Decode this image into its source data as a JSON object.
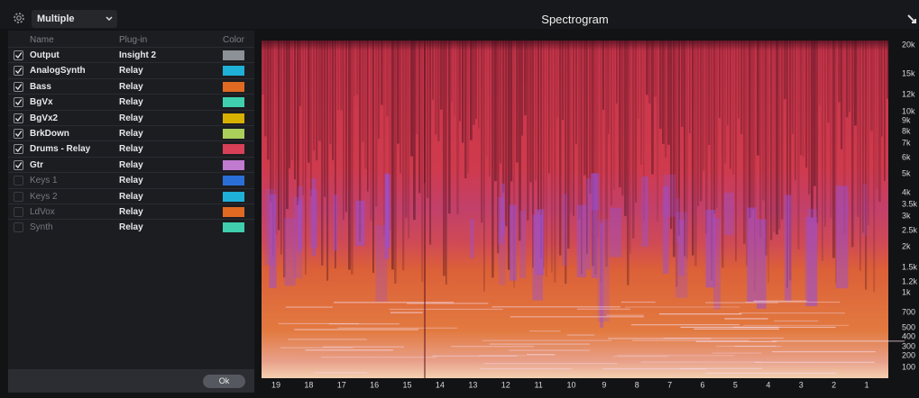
{
  "toolbar": {
    "view_select": "Multiple",
    "title": "Spectrogram"
  },
  "table": {
    "headers": [
      "Name",
      "Plug-in",
      "Color"
    ],
    "rows": [
      {
        "name": "Output",
        "plugin": "Insight 2",
        "color": "#8c9097",
        "checked": true
      },
      {
        "name": "AnalogSynth",
        "plugin": "Relay",
        "color": "#1fb0d8",
        "checked": true
      },
      {
        "name": "Bass",
        "plugin": "Relay",
        "color": "#e06a22",
        "checked": true
      },
      {
        "name": "BgVx",
        "plugin": "Relay",
        "color": "#3fcfae",
        "checked": true
      },
      {
        "name": "BgVx2",
        "plugin": "Relay",
        "color": "#d8b000",
        "checked": true
      },
      {
        "name": "BrkDown",
        "plugin": "Relay",
        "color": "#a9cf5a",
        "checked": true
      },
      {
        "name": "Drums - Relay",
        "plugin": "Relay",
        "color": "#d84058",
        "checked": true
      },
      {
        "name": "Gtr",
        "plugin": "Relay",
        "color": "#c07ad0",
        "checked": true
      },
      {
        "name": "Keys 1",
        "plugin": "Relay",
        "color": "#2a6fd8",
        "checked": false
      },
      {
        "name": "Keys 2",
        "plugin": "Relay",
        "color": "#1fb0d8",
        "checked": false
      },
      {
        "name": "LdVox",
        "plugin": "Relay",
        "color": "#e06a22",
        "checked": false
      },
      {
        "name": "Synth",
        "plugin": "Relay",
        "color": "#3fcfae",
        "checked": false
      }
    ]
  },
  "spectrogram": {
    "frequency_labels": [
      "20k",
      "15k",
      "12k",
      "10k",
      "9k",
      "8k",
      "7k",
      "6k",
      "5k",
      "4k",
      "3.5k",
      "3k",
      "2.5k",
      "2k",
      "1.5k",
      "1.2k",
      "1k",
      "700",
      "500",
      "400",
      "300",
      "200",
      "100"
    ],
    "time_labels": [
      "19",
      "18",
      "17",
      "16",
      "15",
      "14",
      "13",
      "12",
      "11",
      "10",
      "9",
      "8",
      "7",
      "6",
      "5",
      "4",
      "3",
      "2",
      "1"
    ]
  },
  "footer": {
    "ok_button": "Ok"
  }
}
